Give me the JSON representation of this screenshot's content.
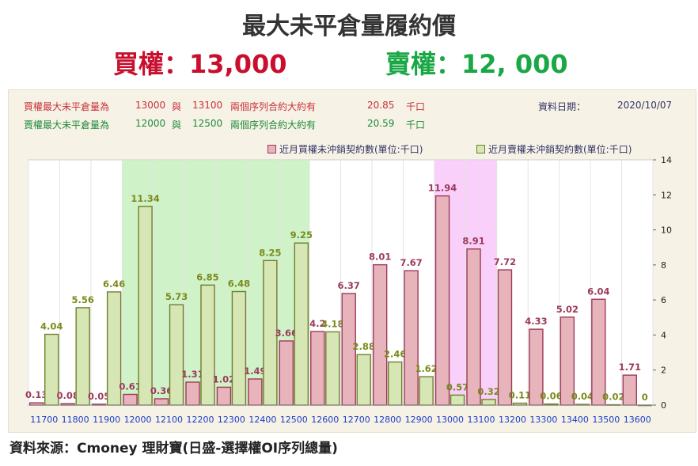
{
  "header": {
    "title": "最大未平倉量履約價",
    "call_text": "買權：13,000",
    "put_text": "賣權：12, 000"
  },
  "info": {
    "row1": {
      "label": "買權最大未平倉量為",
      "strike_a": "13000",
      "conj": "與",
      "strike_b": "13100",
      "desc": "兩個序列合約大約有",
      "value": "20.85",
      "unit": "千口"
    },
    "row2": {
      "label": "賣權最大未平倉量為",
      "strike_a": "12000",
      "conj": "與",
      "strike_b": "12500",
      "desc": "兩個序列合約大約有",
      "value": "20.59",
      "unit": "千口"
    },
    "date_label": "資料日期：",
    "date_value": "2020/10/07"
  },
  "source": "資料來源：Cmoney 理財寶(日盛-選擇權OI序列總量)",
  "colors": {
    "call_fill": "#e8b4bc",
    "call_stroke": "#9c3a5a",
    "call_label": "#9c3a5a",
    "put_fill": "#d6e6b4",
    "put_stroke": "#6f7f2a",
    "put_label": "#7a8a1a",
    "put_highlight": "#c8f0c0",
    "call_highlight": "#f8c8f8"
  },
  "chart_data": {
    "type": "bar",
    "categories": [
      "11700",
      "11800",
      "11900",
      "12000",
      "12100",
      "12200",
      "12300",
      "12400",
      "12500",
      "12600",
      "12700",
      "12800",
      "12900",
      "13000",
      "13100",
      "13200",
      "13300",
      "13400",
      "13500",
      "13600"
    ],
    "series": [
      {
        "name": "近月買權未沖銷契約數(單位:千口)",
        "values": [
          0.13,
          0.08,
          0.05,
          0.61,
          0.36,
          1.31,
          1.02,
          1.49,
          3.66,
          4.2,
          6.37,
          8.01,
          7.67,
          11.94,
          8.91,
          7.72,
          4.33,
          5.02,
          6.04,
          1.71
        ],
        "labels": [
          "0.13",
          "0.08",
          "0.05",
          "0.61",
          "0.36",
          "1.31",
          "1.02",
          "1.49",
          "3.66",
          "4.2",
          "6.37",
          "8.01",
          "7.67",
          "11.94",
          "8.91",
          "7.72",
          "4.33",
          "5.02",
          "6.04",
          "1.71"
        ]
      },
      {
        "name": "近月賣權未沖銷契約數(單位:千口)",
        "values": [
          4.04,
          5.56,
          6.46,
          11.34,
          5.73,
          6.85,
          6.48,
          8.25,
          9.25,
          4.18,
          2.88,
          2.46,
          1.62,
          0.57,
          0.32,
          0.11,
          0.06,
          0.04,
          0.02,
          0
        ],
        "labels": [
          "4.04",
          "5.56",
          "6.46",
          "11.34",
          "5.73",
          "6.85",
          "6.48",
          "8.25",
          "9.25",
          "4.18",
          "2.88",
          "2.46",
          "1.62",
          "0.57",
          "0.32",
          "0.11",
          "0.06",
          "0.04",
          "0.02",
          "0"
        ]
      }
    ],
    "ylim": [
      0,
      14
    ],
    "yticks": [
      "0",
      "2",
      "4",
      "6",
      "8",
      "10",
      "12",
      "14"
    ],
    "highlights": [
      {
        "from_category": "12000",
        "to_category": "12500",
        "series": "put"
      },
      {
        "from_category": "13000",
        "to_category": "13100",
        "series": "call"
      }
    ],
    "grid": true,
    "legend_position": "top-right"
  }
}
